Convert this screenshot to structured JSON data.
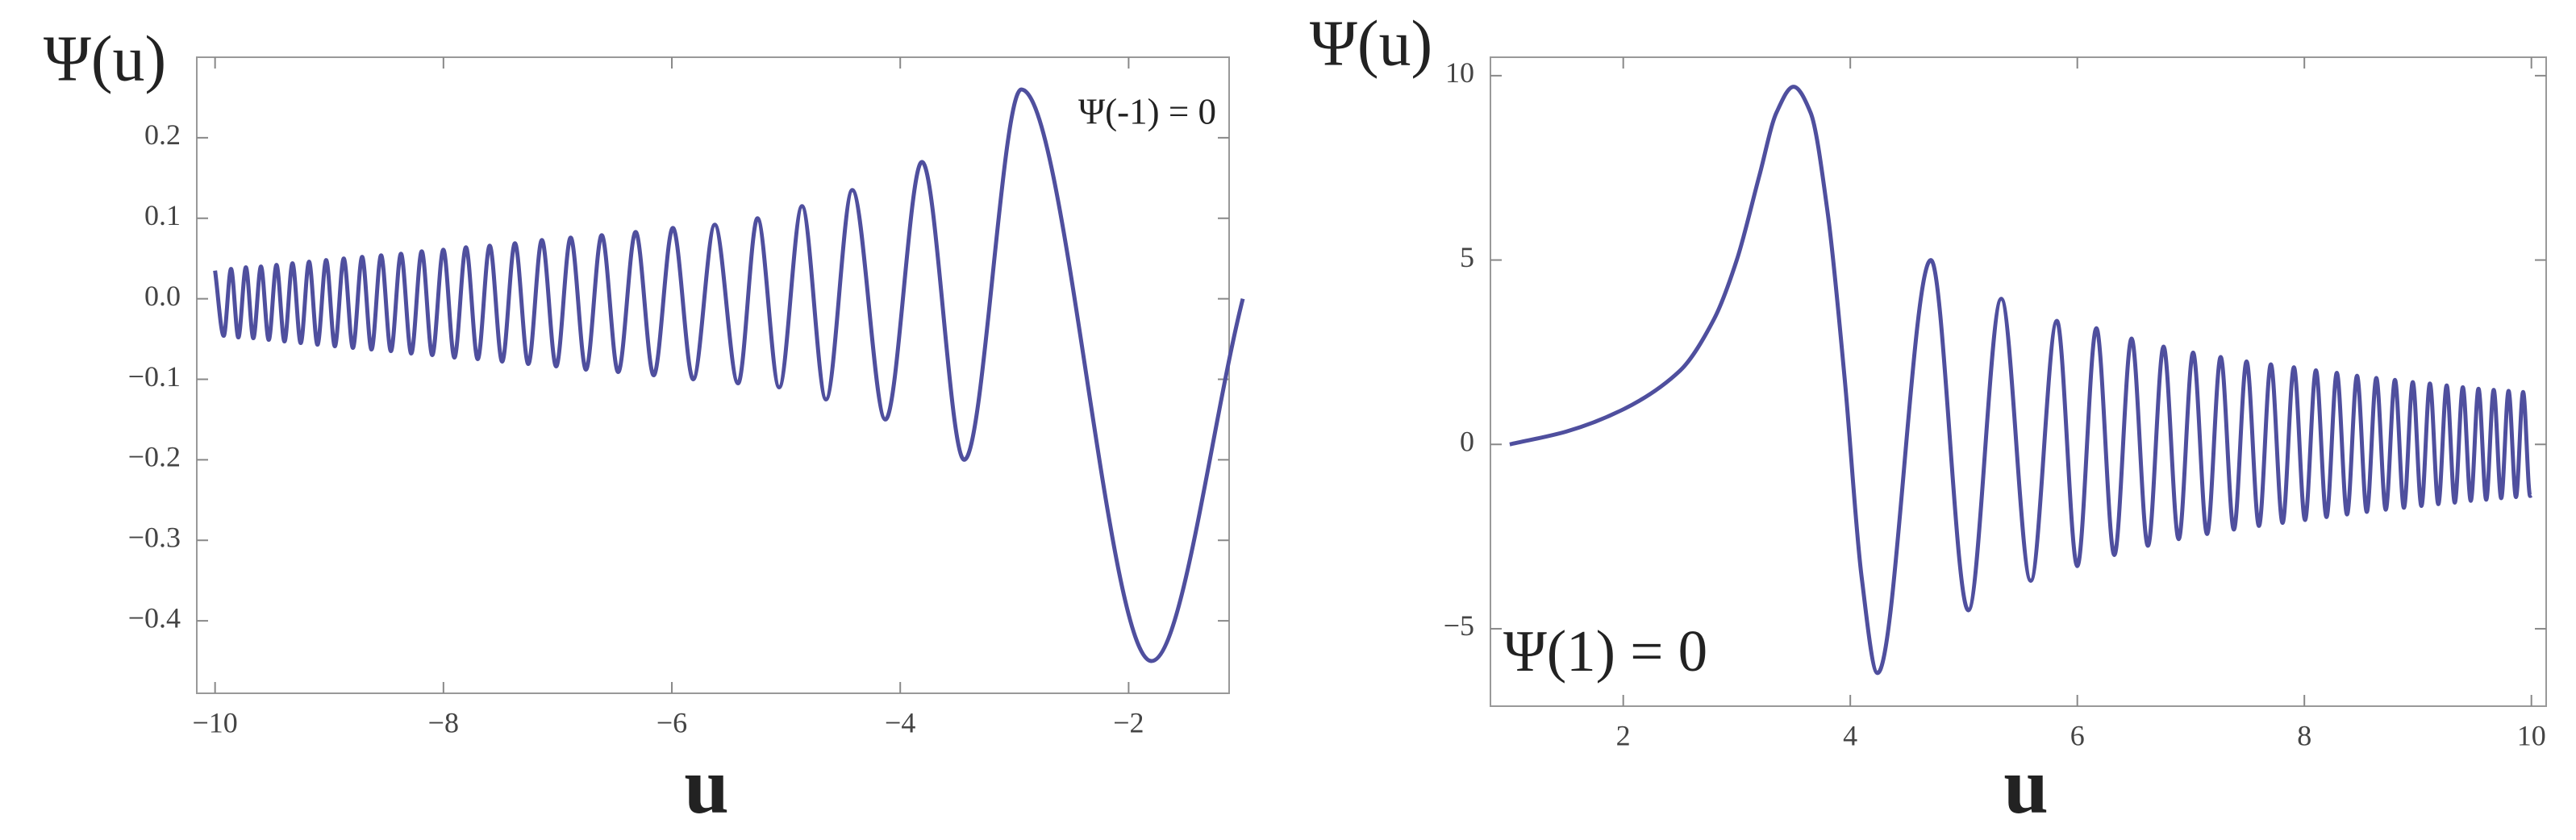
{
  "chart_data": [
    {
      "type": "line",
      "y_label": "Ψ(u)",
      "x_label": "u",
      "annotation": "Ψ(-1) = 0",
      "color": "#4f4f9e",
      "xlim": [
        -10.16,
        -1.12
      ],
      "ylim": [
        -0.49,
        0.3
      ],
      "xticks": [
        {
          "value": -10,
          "label": "−10"
        },
        {
          "value": -8,
          "label": "−8"
        },
        {
          "value": -6,
          "label": "−6"
        },
        {
          "value": -4,
          "label": "−4"
        },
        {
          "value": -2,
          "label": "−2"
        }
      ],
      "yticks": [
        {
          "value": -0.4,
          "label": "−0.4"
        },
        {
          "value": -0.3,
          "label": "−0.3"
        },
        {
          "value": -0.2,
          "label": "−0.2"
        },
        {
          "value": -0.1,
          "label": "−0.1"
        },
        {
          "value": 0,
          "label": "0.0"
        },
        0.1,
        0.2
      ],
      "x": [
        -10.0,
        -9.924,
        -9.86,
        -9.796,
        -9.73,
        -9.665,
        -9.598,
        -9.53,
        -9.462,
        -9.392,
        -9.322,
        -9.25,
        -9.177,
        -9.103,
        -9.027,
        -8.951,
        -8.873,
        -8.793,
        -8.712,
        -8.63,
        -8.546,
        -8.46,
        -8.372,
        -8.282,
        -8.19,
        -8.098,
        -8.001,
        -7.904,
        -7.803,
        -7.7,
        -7.595,
        -7.486,
        -7.374,
        -7.257,
        -7.138,
        -7.013,
        -6.886,
        -6.752,
        -6.614,
        -6.47,
        -6.317,
        -6.159,
        -5.991,
        -5.813,
        -5.624,
        -5.42,
        -5.25,
        -5.06,
        -4.86,
        -4.65,
        -4.42,
        -4.13,
        -3.81,
        -3.44,
        -2.94,
        -1.8,
        -1.0
      ],
      "values": [
        0.035,
        -0.046,
        0.037,
        -0.048,
        0.039,
        -0.049,
        0.04,
        -0.051,
        0.042,
        -0.053,
        0.044,
        -0.055,
        0.046,
        -0.057,
        0.048,
        -0.059,
        0.05,
        -0.061,
        0.052,
        -0.063,
        0.054,
        -0.065,
        0.056,
        -0.068,
        0.059,
        -0.07,
        0.061,
        -0.073,
        0.064,
        -0.075,
        0.066,
        -0.078,
        0.069,
        -0.081,
        0.073,
        -0.084,
        0.076,
        -0.088,
        0.079,
        -0.091,
        0.083,
        -0.095,
        0.088,
        -0.1,
        0.092,
        -0.105,
        0.1,
        -0.11,
        0.115,
        -0.125,
        0.135,
        -0.15,
        0.17,
        -0.2,
        0.26,
        -0.45,
        0.0
      ]
    },
    {
      "type": "line",
      "y_label": "Ψ(u)",
      "x_label": "u",
      "annotation": "Ψ(1) = 0",
      "color": "#4f4f9e",
      "xlim": [
        0.83,
        10.13
      ],
      "ylim": [
        -7.1,
        10.5
      ],
      "xticks": [
        2,
        4,
        6,
        8,
        10
      ],
      "yticks": [
        {
          "value": -5,
          "label": "−5"
        },
        0,
        5,
        10
      ],
      "x": [
        1.0,
        1.5,
        2.0,
        2.5,
        2.8,
        3.0,
        3.2,
        3.35,
        3.5,
        3.65,
        3.8,
        3.95,
        4.1,
        4.24,
        4.71,
        5.04,
        5.33,
        5.59,
        5.82,
        6.0,
        6.168,
        6.326,
        6.478,
        6.622,
        6.76,
        6.893,
        7.02,
        7.143,
        7.263,
        7.379,
        7.491,
        7.6,
        7.705,
        7.808,
        7.908,
        8.006,
        8.102,
        8.195,
        8.286,
        8.376,
        8.464,
        8.55,
        8.634,
        8.717,
        8.798,
        8.877,
        8.955,
        9.031,
        9.106,
        9.18,
        9.254,
        9.325,
        9.396,
        9.466,
        9.534,
        9.602,
        9.668,
        9.734,
        9.799,
        9.864,
        9.927,
        9.989,
        10.0
      ],
      "values": [
        0,
        0.35,
        0.95,
        2.0,
        3.4,
        5.0,
        7.3,
        9.0,
        9.7,
        9.0,
        6.3,
        1.8,
        -3.6,
        -6.2,
        5.0,
        -4.5,
        3.95,
        -3.7,
        3.35,
        -3.3,
        3.15,
        -3.0,
        2.87,
        -2.75,
        2.65,
        -2.57,
        2.49,
        -2.43,
        2.37,
        -2.31,
        2.25,
        -2.21,
        2.17,
        -2.13,
        2.09,
        -2.05,
        2.01,
        -1.97,
        1.94,
        -1.9,
        1.86,
        -1.83,
        1.8,
        -1.77,
        1.75,
        -1.72,
        1.69,
        -1.67,
        1.65,
        -1.62,
        1.6,
        -1.58,
        1.55,
        -1.53,
        1.51,
        -1.5,
        1.48,
        -1.46,
        1.45,
        -1.43,
        1.42,
        -1.4,
        -1.38
      ]
    }
  ]
}
